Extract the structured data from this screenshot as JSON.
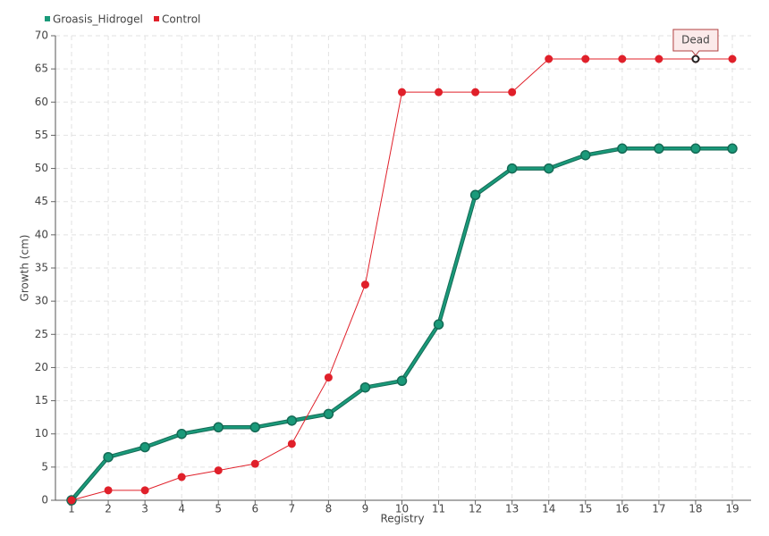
{
  "chart_data": {
    "type": "line",
    "categories": [
      "1",
      "2",
      "3",
      "4",
      "5",
      "6",
      "7",
      "8",
      "9",
      "10",
      "11",
      "12",
      "13",
      "14",
      "15",
      "16",
      "17",
      "18",
      "19"
    ],
    "series": [
      {
        "name": "Groasis_Hidrogel",
        "color": "#1a9a7a",
        "values": [
          0,
          6.5,
          8,
          10,
          11,
          11,
          12,
          13,
          17,
          18,
          26.5,
          46,
          50,
          50,
          52,
          53,
          53,
          53,
          53
        ]
      },
      {
        "name": "Control",
        "color": "#e0202a",
        "values": [
          0,
          1.5,
          1.5,
          3.5,
          4.5,
          5.5,
          8.5,
          18.5,
          32.5,
          61.5,
          61.5,
          61.5,
          61.5,
          66.5,
          66.5,
          66.5,
          66.5,
          66.5,
          66.5
        ]
      }
    ],
    "xlabel": "Registry",
    "ylabel": "Growth (cm)",
    "ylim": [
      0,
      70
    ],
    "yticks": [
      0,
      5,
      10,
      15,
      20,
      25,
      30,
      35,
      40,
      45,
      50,
      55,
      60,
      65,
      70
    ],
    "grid": true,
    "annotation": {
      "text": "Dead",
      "x": "18",
      "series": "Control"
    }
  }
}
